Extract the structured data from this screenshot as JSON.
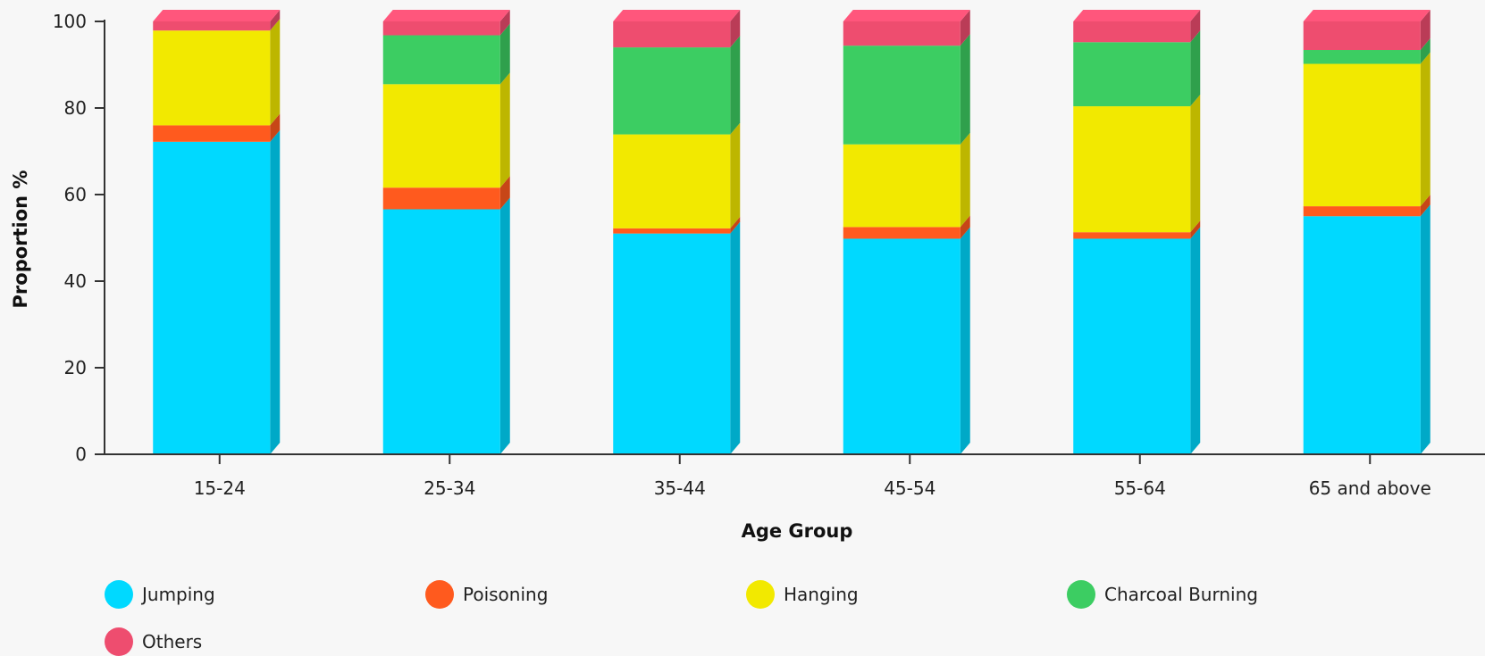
{
  "chart_data": {
    "type": "bar",
    "stacked": true,
    "style": "3d",
    "title": "",
    "xlabel": "Age Group",
    "ylabel": "Proportion %",
    "ylim": [
      0,
      100
    ],
    "yticks": [
      0,
      20,
      40,
      60,
      80,
      100
    ],
    "grid": false,
    "legend_position": "bottom",
    "categories": [
      "15-24",
      "25-34",
      "35-44",
      "45-54",
      "55-64",
      "65 and above"
    ],
    "series": [
      {
        "name": "Jumping",
        "color": "#00d9ff",
        "values": [
          72.2,
          56.6,
          51.0,
          49.8,
          49.8,
          55.0
        ]
      },
      {
        "name": "Poisoning",
        "color": "#ff5a1e",
        "values": [
          3.8,
          5.0,
          1.2,
          2.7,
          1.5,
          2.3
        ]
      },
      {
        "name": "Hanging",
        "color": "#f2e900",
        "values": [
          21.9,
          23.9,
          21.7,
          19.1,
          29.1,
          32.9
        ]
      },
      {
        "name": "Charcoal Burning",
        "color": "#3ccd62",
        "values": [
          0.0,
          11.3,
          20.1,
          22.8,
          14.8,
          3.2
        ]
      },
      {
        "name": "Others",
        "color": "#ee4d6f",
        "values": [
          2.1,
          3.2,
          6.0,
          5.6,
          4.8,
          6.6
        ]
      }
    ]
  }
}
